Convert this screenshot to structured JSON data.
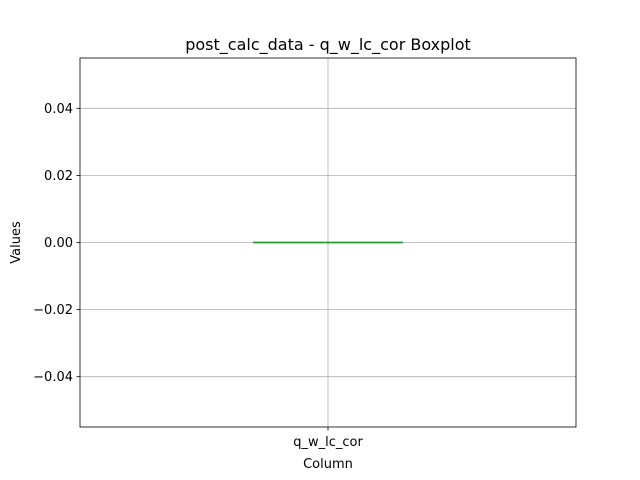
{
  "chart_data": {
    "type": "box",
    "title": "post_calc_data - q_w_lc_cor Boxplot",
    "xlabel": "Column",
    "ylabel": "Values",
    "categories": [
      "q_w_lc_cor"
    ],
    "ylim": [
      -0.055,
      0.055
    ],
    "yticks": [
      -0.04,
      -0.02,
      0.0,
      0.02,
      0.04
    ],
    "ytick_labels": [
      "−0.04",
      "−0.02",
      "0.00",
      "0.02",
      "0.04"
    ],
    "grid": true,
    "boxes": [
      {
        "name": "q_w_lc_cor",
        "min": 0.0,
        "q1": 0.0,
        "median": 0.0,
        "q3": 0.0,
        "max": 0.0
      }
    ],
    "colors": {
      "box": "#1f77b4",
      "median": "#2ca02c",
      "grid": "#b0b0b0",
      "axes": "#000000"
    }
  }
}
